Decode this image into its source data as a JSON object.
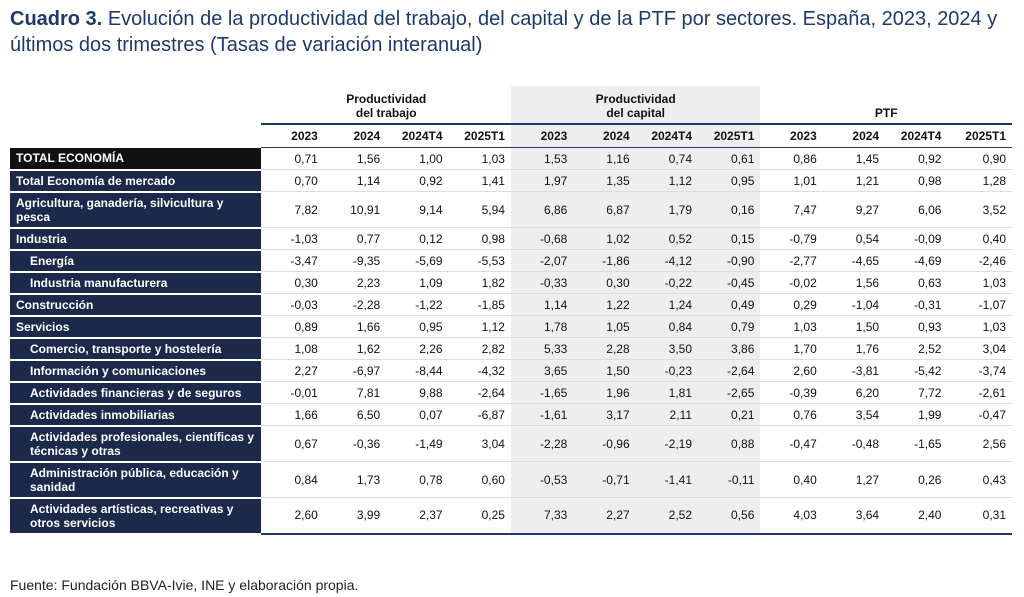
{
  "title": {
    "prefix": "Cuadro 3.",
    "text": "Evolución de la productividad del trabajo, del capital y de la PTF por sectores. España, 2023, 2024 y últimos dos trimestres (Tasas de variación interanual)"
  },
  "groups": [
    {
      "line1": "Productividad",
      "line2": "del trabajo"
    },
    {
      "line1": "Productividad",
      "line2": "del capital"
    },
    {
      "line1": "PTF",
      "line2": ""
    }
  ],
  "periods": [
    "2023",
    "2024",
    "2024T4",
    "2025T1"
  ],
  "rows": [
    {
      "label": "TOTAL ECONOMÍA",
      "indent": false,
      "values": [
        "0,71",
        "1,56",
        "1,00",
        "1,03",
        "1,53",
        "1,16",
        "0,74",
        "0,61",
        "0,86",
        "1,45",
        "0,92",
        "0,90"
      ]
    },
    {
      "label": "Total Economía de mercado",
      "indent": false,
      "values": [
        "0,70",
        "1,14",
        "0,92",
        "1,41",
        "1,97",
        "1,35",
        "1,12",
        "0,95",
        "1,01",
        "1,21",
        "0,98",
        "1,28"
      ]
    },
    {
      "label": "Agricultura, ganadería, silvicultura y pesca",
      "indent": false,
      "values": [
        "7,82",
        "10,91",
        "9,14",
        "5,94",
        "6,86",
        "6,87",
        "1,79",
        "0,16",
        "7,47",
        "9,27",
        "6,06",
        "3,52"
      ]
    },
    {
      "label": "Industria",
      "indent": false,
      "values": [
        "-1,03",
        "0,77",
        "0,12",
        "0,98",
        "-0,68",
        "1,02",
        "0,52",
        "0,15",
        "-0,79",
        "0,54",
        "-0,09",
        "0,40"
      ]
    },
    {
      "label": "Energía",
      "indent": true,
      "values": [
        "-3,47",
        "-9,35",
        "-5,69",
        "-5,53",
        "-2,07",
        "-1,86",
        "-4,12",
        "-0,90",
        "-2,77",
        "-4,65",
        "-4,69",
        "-2,46"
      ]
    },
    {
      "label": "Industria manufacturera",
      "indent": true,
      "values": [
        "0,30",
        "2,23",
        "1,09",
        "1,82",
        "-0,33",
        "0,30",
        "-0,22",
        "-0,45",
        "-0,02",
        "1,56",
        "0,63",
        "1,03"
      ]
    },
    {
      "label": "Construcción",
      "indent": false,
      "values": [
        "-0,03",
        "-2,28",
        "-1,22",
        "-1,85",
        "1,14",
        "1,22",
        "1,24",
        "0,49",
        "0,29",
        "-1,04",
        "-0,31",
        "-1,07"
      ]
    },
    {
      "label": "Servicios",
      "indent": false,
      "values": [
        "0,89",
        "1,66",
        "0,95",
        "1,12",
        "1,78",
        "1,05",
        "0,84",
        "0,79",
        "1,03",
        "1,50",
        "0,93",
        "1,03"
      ]
    },
    {
      "label": "Comercio, transporte y hostelería",
      "indent": true,
      "values": [
        "1,08",
        "1,62",
        "2,26",
        "2,82",
        "5,33",
        "2,28",
        "3,50",
        "3,86",
        "1,70",
        "1,76",
        "2,52",
        "3,04"
      ]
    },
    {
      "label": "Información y comunicaciones",
      "indent": true,
      "values": [
        "2,27",
        "-6,97",
        "-8,44",
        "-4,32",
        "3,65",
        "1,50",
        "-0,23",
        "-2,64",
        "2,60",
        "-3,81",
        "-5,42",
        "-3,74"
      ]
    },
    {
      "label": "Actividades financieras y de seguros",
      "indent": true,
      "values": [
        "-0,01",
        "7,81",
        "9,88",
        "-2,64",
        "-1,65",
        "1,96",
        "1,81",
        "-2,65",
        "-0,39",
        "6,20",
        "7,72",
        "-2,61"
      ]
    },
    {
      "label": "Actividades inmobiliarias",
      "indent": true,
      "values": [
        "1,66",
        "6,50",
        "0,07",
        "-6,87",
        "-1,61",
        "3,17",
        "2,11",
        "0,21",
        "0,76",
        "3,54",
        "1,99",
        "-0,47"
      ]
    },
    {
      "label": "Actividades profesionales, científicas y técnicas y otras",
      "indent": true,
      "values": [
        "0,67",
        "-0,36",
        "-1,49",
        "3,04",
        "-2,28",
        "-0,96",
        "-2,19",
        "0,88",
        "-0,47",
        "-0,48",
        "-1,65",
        "2,56"
      ]
    },
    {
      "label": "Administración pública, educación y sanidad",
      "indent": true,
      "values": [
        "0,84",
        "1,73",
        "0,78",
        "0,60",
        "-0,53",
        "-0,71",
        "-1,41",
        "-0,11",
        "0,40",
        "1,27",
        "0,26",
        "0,43"
      ]
    },
    {
      "label": "Actividades artísticas, recreativas y otros servicios",
      "indent": true,
      "values": [
        "2,60",
        "3,99",
        "2,37",
        "0,25",
        "7,33",
        "2,27",
        "2,52",
        "0,56",
        "4,03",
        "3,64",
        "2,40",
        "0,31"
      ]
    }
  ],
  "source": "Fuente: Fundación BBVA-Ivie, INE y elaboración propia.",
  "colors": {
    "title": "#1d3a6b",
    "label_bg": "#1b2a4a",
    "total_bg": "#111111",
    "capital_bg": "#eeeeee"
  }
}
